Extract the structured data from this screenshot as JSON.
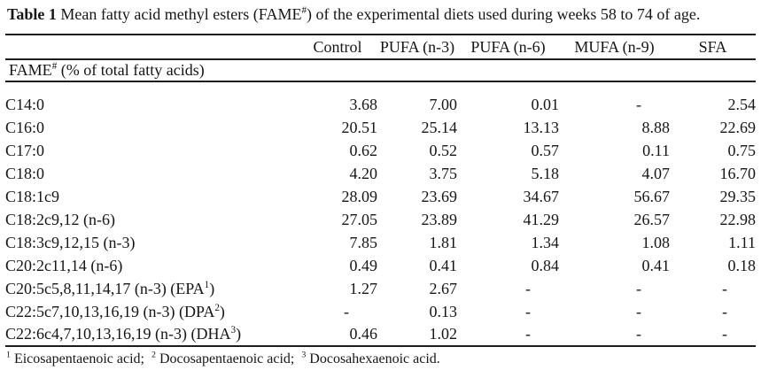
{
  "document": {
    "title": {
      "label": "Table 1",
      "before_sup": " Mean fatty acid methyl esters (FAME",
      "sup": "#",
      "after_sup": ") of the experimental diets used during weeks 58 to 74 of age."
    },
    "table": {
      "columns": [
        "Control",
        "PUFA (n-3)",
        "PUFA (n-6)",
        "MUFA (n-9)",
        "SFA"
      ],
      "section": {
        "before_sup": "FAME",
        "sup": "#",
        "after_sup": " (% of total fatty acids)"
      },
      "rows": [
        {
          "label": "C14:0",
          "values": [
            "3.68",
            "7.00",
            "0.01",
            "-",
            "2.54"
          ]
        },
        {
          "label": "C16:0",
          "values": [
            "20.51",
            "25.14",
            "13.13",
            "8.88",
            "22.69"
          ]
        },
        {
          "label": "C17:0",
          "values": [
            "0.62",
            "0.52",
            "0.57",
            "0.11",
            "0.75"
          ]
        },
        {
          "label": "C18:0",
          "values": [
            "4.20",
            "3.75",
            "5.18",
            "4.07",
            "16.70"
          ]
        },
        {
          "label": "C18:1c9",
          "values": [
            "28.09",
            "23.69",
            "34.67",
            "56.67",
            "29.35"
          ]
        },
        {
          "label": "C18:2c9,12 (n-6)",
          "values": [
            "27.05",
            "23.89",
            "41.29",
            "26.57",
            "22.98"
          ]
        },
        {
          "label": "C18:3c9,12,15 (n-3)",
          "values": [
            "7.85",
            "1.81",
            "1.34",
            "1.08",
            "1.11"
          ]
        },
        {
          "label": "C20:2c11,14 (n-6)",
          "values": [
            "0.49",
            "0.41",
            "0.84",
            "0.41",
            "0.18"
          ]
        },
        {
          "label": "C20:5c5,8,11,14,17 (n-3) (EPA",
          "sup": "1",
          "after": ")",
          "values": [
            "1.27",
            "2.67",
            "-",
            "-",
            "-"
          ]
        },
        {
          "label": "C22:5c7,10,13,16,19 (n-3) (DPA",
          "sup": "2",
          "after": ")",
          "values": [
            "-",
            "0.13",
            "-",
            "-",
            "-"
          ]
        },
        {
          "label": "C22:6c4,7,10,13,16,19 (n-3) (DHA",
          "sup": "3",
          "after": ")",
          "values": [
            "0.46",
            "1.02",
            "-",
            "-",
            "-"
          ]
        }
      ]
    },
    "footnotes": [
      {
        "sup": "1",
        "text": "Eicosapentaenoic acid;"
      },
      {
        "sup": "2",
        "text": "Docosapentaenoic acid;"
      },
      {
        "sup": "3",
        "text": "Docosahexaenoic acid."
      }
    ]
  }
}
